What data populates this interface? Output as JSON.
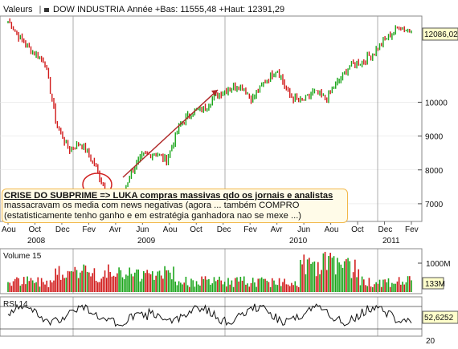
{
  "header": {
    "valeurs_label": "Valeurs",
    "instrument": "DOW INDUSTRIA",
    "period_stats": "Année +Bas: 11555,48 +Haut: 12391,29"
  },
  "annotation": {
    "line1": "CRISE DO SUBPRIME => LUKA compras massivas qdo os jornais e analistas",
    "line2": "massacravam os media com news negativas  (agora ... também COMPRO",
    "line3": "(estatisticamente tenho ganho e em estratégia ganhadora nao se mexe ...)"
  },
  "colors": {
    "up": "#1aa51a",
    "down": "#d11a1a",
    "arrow": "#b02a2a",
    "circle": "#d02020",
    "price_tag": "#ffffcc",
    "note_bg": "#fffbe8",
    "note_border": "#f2b84a",
    "grid": "#9a9a9a",
    "rsi_line": "#111111"
  },
  "chart_data": [
    {
      "type": "line",
      "title": "",
      "instrument": "DOW INDUSTRIA",
      "x_ticks": [
        "Aou",
        "Oct",
        "Dec",
        "Fev",
        "Avr",
        "Jun",
        "Aou",
        "Oct",
        "Dec",
        "Fev",
        "Avr",
        "Jun",
        "Aou",
        "Oct",
        "Dec",
        "Fev"
      ],
      "year_labels": [
        "2008",
        "2009",
        "2010",
        "2011"
      ],
      "y_ticks": [
        7000,
        8000,
        9000,
        10000
      ],
      "ylim": [
        6500,
        12500
      ],
      "last_value_label": "12086,02",
      "last_value": 12086.02,
      "grid": true,
      "x": [
        "2008-06",
        "2008-07",
        "2008-08",
        "2008-09",
        "2008-10",
        "2008-11",
        "2008-12",
        "2009-01",
        "2009-02",
        "2009-03",
        "2009-04",
        "2009-05",
        "2009-06",
        "2009-07",
        "2009-08",
        "2009-09",
        "2009-10",
        "2009-11",
        "2009-12",
        "2010-01",
        "2010-02",
        "2010-03",
        "2010-04",
        "2010-05",
        "2010-06",
        "2010-07",
        "2010-08",
        "2010-09",
        "2010-10",
        "2010-11",
        "2010-12",
        "2011-01",
        "2011-02",
        "2011-03"
      ],
      "series": [
        {
          "values": [
            12400,
            11900,
            11500,
            11200,
            9300,
            8600,
            8800,
            8200,
            7400,
            6800,
            7900,
            8400,
            8500,
            8300,
            9300,
            9700,
            9800,
            10200,
            10400,
            10500,
            10100,
            10600,
            11000,
            10200,
            10000,
            10300,
            10100,
            10600,
            11100,
            11200,
            11500,
            11900,
            12250,
            12086.02
          ]
        }
      ]
    },
    {
      "type": "bar",
      "title": "Volume 15",
      "y_ticks": [
        "1000M"
      ],
      "last_value_label": "133M"
    },
    {
      "type": "line",
      "title": "RSI 14",
      "y_ticks": [
        20
      ],
      "ylim": [
        0,
        100
      ],
      "last_value_label": "52,6252",
      "last_value": 52.6252
    }
  ]
}
